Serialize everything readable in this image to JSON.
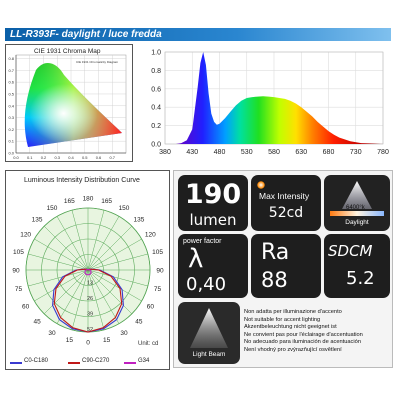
{
  "header": {
    "title": "LL-R393F- daylight / luce fredda"
  },
  "cie": {
    "title": "CIE 1931 Chroma Map",
    "inner_title": "CIE 1931 Chromaticity Diagram",
    "x_ticks": [
      "0.0",
      "0.1",
      "0.2",
      "0.3",
      "0.4",
      "0.5",
      "0.6",
      "0.7"
    ],
    "y_ticks": [
      "0.0",
      "0.1",
      "0.2",
      "0.3",
      "0.4",
      "0.5",
      "0.6",
      "0.7",
      "0.8"
    ]
  },
  "chart_data": [
    {
      "type": "area",
      "title": "",
      "xlabel": "",
      "ylabel": "",
      "x_ticks": [
        380,
        430,
        480,
        530,
        580,
        630,
        680,
        730,
        780
      ],
      "y_ticks": [
        "0.0",
        "0.2",
        "0.4",
        "0.6",
        "0.8",
        "1.0"
      ],
      "xlim": [
        380,
        780
      ],
      "ylim": [
        0,
        1.0
      ],
      "grid": true,
      "x": [
        400,
        410,
        420,
        430,
        440,
        445,
        450,
        455,
        460,
        465,
        470,
        475,
        480,
        490,
        500,
        510,
        520,
        530,
        540,
        550,
        560,
        570,
        580,
        590,
        600,
        610,
        620,
        630,
        640,
        650,
        660,
        670,
        680,
        690,
        700,
        720,
        740,
        760,
        780
      ],
      "y": [
        0,
        0.01,
        0.04,
        0.16,
        0.62,
        0.88,
        1.0,
        0.86,
        0.55,
        0.33,
        0.24,
        0.21,
        0.22,
        0.28,
        0.35,
        0.42,
        0.47,
        0.5,
        0.51,
        0.515,
        0.52,
        0.515,
        0.51,
        0.5,
        0.49,
        0.47,
        0.44,
        0.4,
        0.35,
        0.3,
        0.24,
        0.19,
        0.14,
        0.1,
        0.07,
        0.03,
        0.01,
        0.005,
        0
      ]
    },
    {
      "type": "polar",
      "title": "Luminous Intensity Distribution Curve",
      "angle_labels": [
        "180",
        "165",
        "150",
        "135",
        "120",
        "105",
        "90",
        "75",
        "60",
        "45",
        "30",
        "15",
        "0",
        "15",
        "30",
        "45",
        "60",
        "75",
        "90",
        "105",
        "120",
        "135",
        "150",
        "165"
      ],
      "radial_labels": [
        "13",
        "26",
        "39",
        "52"
      ],
      "unit": "Unit: cd",
      "legend": [
        "C0-C180",
        "C90-C270",
        "G34"
      ],
      "series": [
        {
          "name": "C0-C180",
          "color": "#3a3ad0",
          "angles": [
            0,
            15,
            30,
            45,
            60,
            75,
            90,
            105,
            120,
            135,
            150,
            165,
            180
          ],
          "values": [
            52,
            51,
            48,
            42,
            33,
            22,
            10,
            3,
            1,
            0.5,
            0.3,
            0.2,
            0.2
          ]
        },
        {
          "name": "C90-C270",
          "color": "#c01818",
          "angles": [
            0,
            15,
            30,
            45,
            60,
            75,
            90,
            105,
            120,
            135,
            150,
            165,
            180
          ],
          "values": [
            52,
            50,
            46,
            40,
            31,
            20,
            9,
            2.5,
            1,
            0.5,
            0.3,
            0.2,
            0.2
          ]
        },
        {
          "name": "G34",
          "color": "#c020c0",
          "angles": [
            0,
            15,
            30,
            45,
            60,
            75,
            90,
            105,
            120,
            135,
            150,
            165,
            180
          ],
          "values": [
            4,
            4,
            3.8,
            3.5,
            3,
            2.2,
            1.5,
            1,
            0.6,
            0.3,
            0.2,
            0.1,
            0.1
          ]
        }
      ]
    }
  ],
  "specs": {
    "lumen_value": "190",
    "lumen_label": "lumen",
    "max_intensity_label": "Max Intensity",
    "max_intensity_value": "52cd",
    "cct_label": "6400°k",
    "daylight_label": "Daylight",
    "pf_label": "power factor",
    "pf_symbol": "λ",
    "pf_value": "0,40",
    "ra_label": "Ra",
    "ra_value": "88",
    "sdcm_label": "SDCM",
    "sdcm_value": "5.2",
    "beam_label": "Light Beam",
    "warnings": [
      "Non adatta per illuminazione d'accento",
      "Not suitable for accent lighting",
      "Akzentbeleuchtung nicht geeignet ist",
      "Ne convient pas pour l'éclairage d'accentuation",
      "No adecuado para iluminación de acentuación",
      "Není vhodný pro zvýrazňující osvětlení"
    ]
  },
  "colors": {
    "accent": "#1a6fc0",
    "c0": "#3a3ad0",
    "c90": "#c01818",
    "g34": "#c020c0"
  }
}
